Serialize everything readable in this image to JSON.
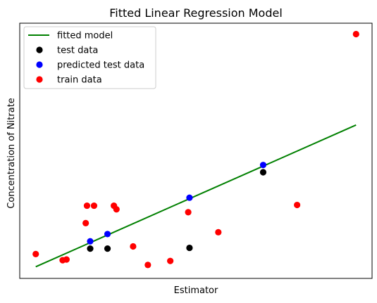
{
  "chart_data": {
    "type": "scatter",
    "title": "Fitted Linear Regression Model",
    "xlabel": "Estimator",
    "ylabel": "Concentration of Nitrate",
    "xlim": [
      -0.55,
      4.95
    ],
    "ylim": [
      -0.22,
      6.8
    ],
    "xticks": false,
    "yticks": false,
    "grid": false,
    "legend_position": "top-left",
    "series": [
      {
        "name": "fitted model",
        "kind": "line",
        "color": "#008000",
        "x": [
          -0.3,
          4.7
        ],
        "y": [
          0.1,
          4.0
        ]
      },
      {
        "name": "test data",
        "kind": "scatter",
        "color": "#000000",
        "x": [
          0.55,
          0.82,
          2.1,
          3.25
        ],
        "y": [
          0.6,
          0.6,
          0.62,
          2.7
        ]
      },
      {
        "name": "predicted test data",
        "kind": "scatter",
        "color": "#0000ff",
        "x": [
          0.55,
          0.82,
          2.1,
          3.25
        ],
        "y": [
          0.8,
          1.0,
          2.0,
          2.9
        ]
      },
      {
        "name": "train data",
        "kind": "scatter",
        "color": "#ff0000",
        "x": [
          -0.3,
          0.12,
          0.18,
          0.48,
          0.5,
          0.61,
          0.92,
          0.96,
          1.22,
          1.45,
          1.8,
          2.08,
          2.55,
          3.78,
          4.7
        ],
        "y": [
          0.45,
          0.28,
          0.3,
          1.3,
          1.78,
          1.78,
          1.78,
          1.68,
          0.66,
          0.15,
          0.26,
          1.6,
          1.05,
          1.8,
          6.5
        ]
      }
    ]
  }
}
